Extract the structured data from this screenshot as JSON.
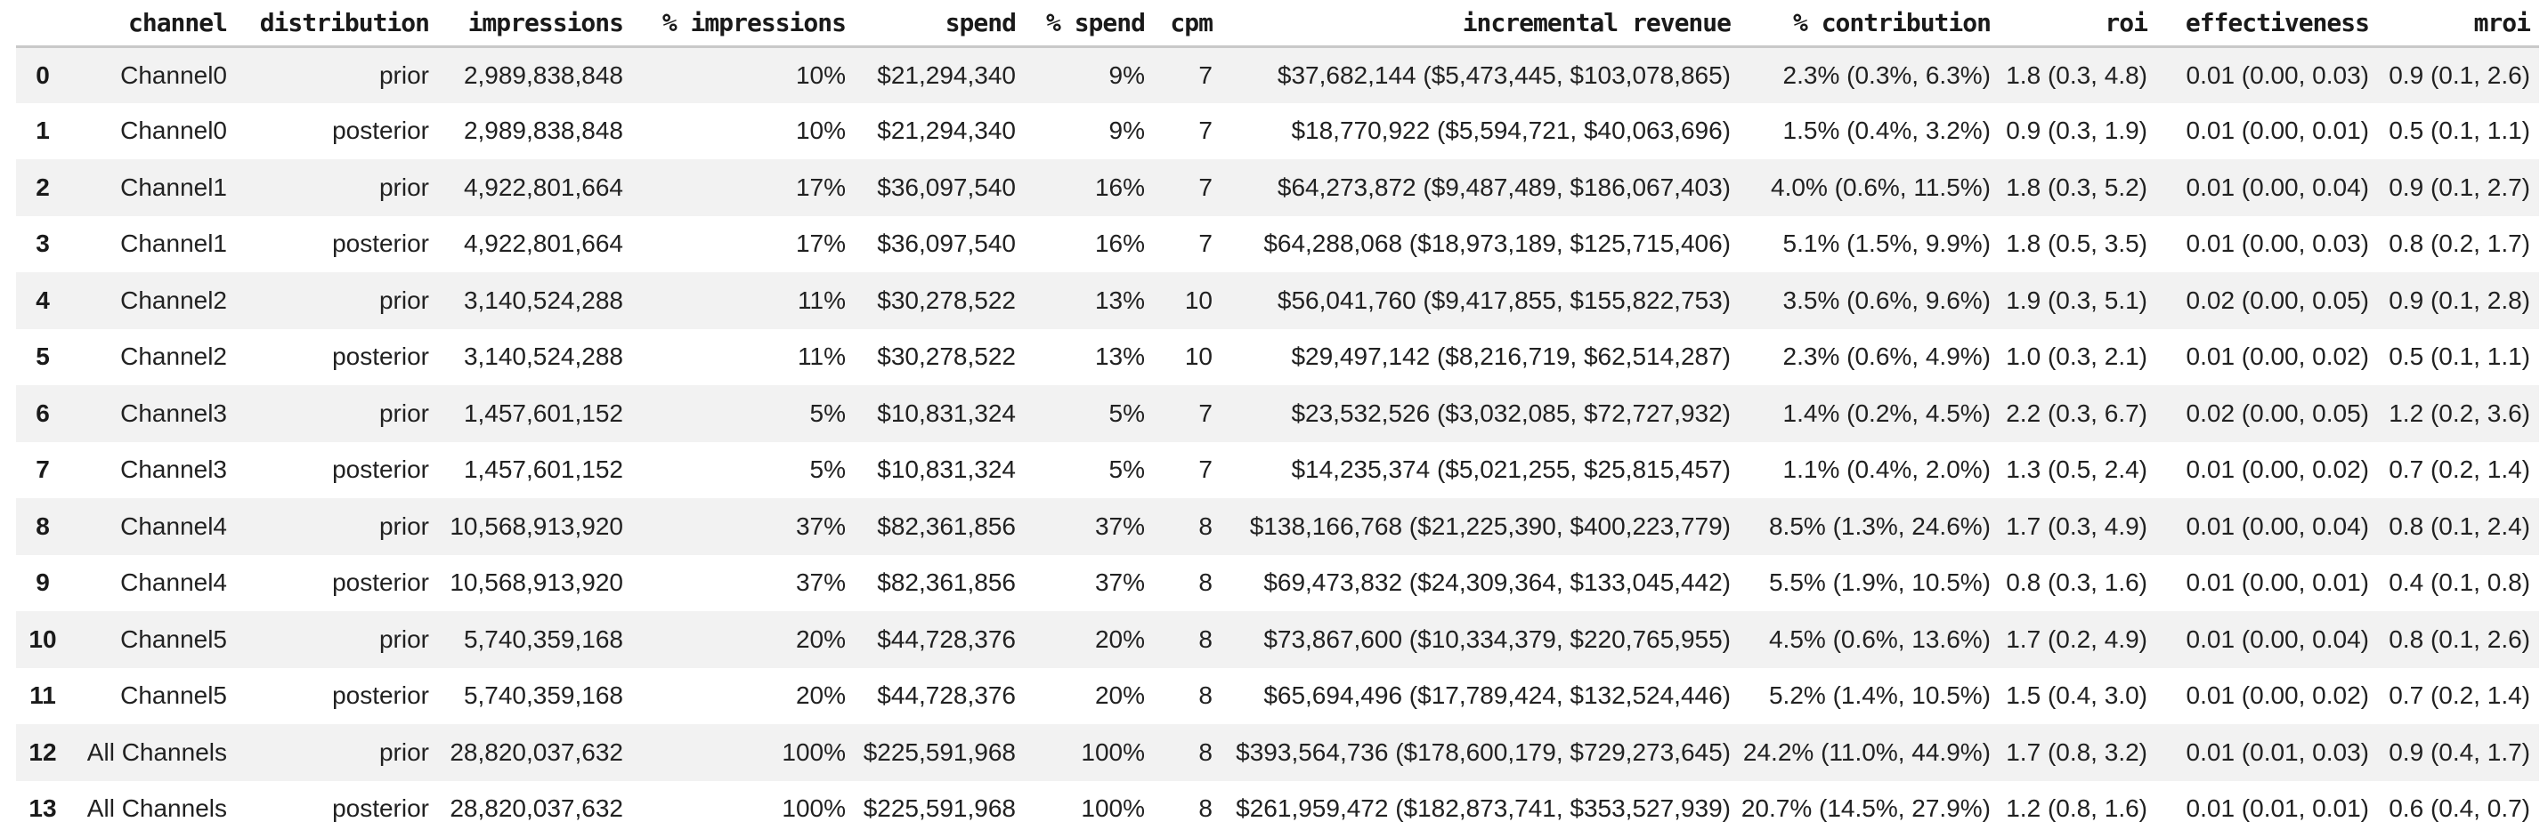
{
  "chart_data": {
    "type": "table",
    "columns": [
      "",
      "channel",
      "distribution",
      "impressions",
      "% impressions",
      "spend",
      "% spend",
      "cpm",
      "incremental revenue",
      "% contribution",
      "roi",
      "effectiveness",
      "mroi"
    ],
    "column_keys": [
      "row-index",
      "channel",
      "distribution",
      "impressions",
      "pct-impressions",
      "spend",
      "pct-spend",
      "cpm",
      "incremental-revenue",
      "pct-contribution",
      "roi",
      "effectiveness",
      "mroi"
    ],
    "rows": [
      [
        "0",
        "Channel0",
        "prior",
        "2,989,838,848",
        "10%",
        "$21,294,340",
        "9%",
        "7",
        "$37,682,144 ($5,473,445, $103,078,865)",
        "2.3% (0.3%, 6.3%)",
        "1.8 (0.3, 4.8)",
        "0.01 (0.00, 0.03)",
        "0.9 (0.1, 2.6)"
      ],
      [
        "1",
        "Channel0",
        "posterior",
        "2,989,838,848",
        "10%",
        "$21,294,340",
        "9%",
        "7",
        "$18,770,922 ($5,594,721, $40,063,696)",
        "1.5% (0.4%, 3.2%)",
        "0.9 (0.3, 1.9)",
        "0.01 (0.00, 0.01)",
        "0.5 (0.1, 1.1)"
      ],
      [
        "2",
        "Channel1",
        "prior",
        "4,922,801,664",
        "17%",
        "$36,097,540",
        "16%",
        "7",
        "$64,273,872 ($9,487,489, $186,067,403)",
        "4.0% (0.6%, 11.5%)",
        "1.8 (0.3, 5.2)",
        "0.01 (0.00, 0.04)",
        "0.9 (0.1, 2.7)"
      ],
      [
        "3",
        "Channel1",
        "posterior",
        "4,922,801,664",
        "17%",
        "$36,097,540",
        "16%",
        "7",
        "$64,288,068 ($18,973,189, $125,715,406)",
        "5.1% (1.5%, 9.9%)",
        "1.8 (0.5, 3.5)",
        "0.01 (0.00, 0.03)",
        "0.8 (0.2, 1.7)"
      ],
      [
        "4",
        "Channel2",
        "prior",
        "3,140,524,288",
        "11%",
        "$30,278,522",
        "13%",
        "10",
        "$56,041,760 ($9,417,855, $155,822,753)",
        "3.5% (0.6%, 9.6%)",
        "1.9 (0.3, 5.1)",
        "0.02 (0.00, 0.05)",
        "0.9 (0.1, 2.8)"
      ],
      [
        "5",
        "Channel2",
        "posterior",
        "3,140,524,288",
        "11%",
        "$30,278,522",
        "13%",
        "10",
        "$29,497,142 ($8,216,719, $62,514,287)",
        "2.3% (0.6%, 4.9%)",
        "1.0 (0.3, 2.1)",
        "0.01 (0.00, 0.02)",
        "0.5 (0.1, 1.1)"
      ],
      [
        "6",
        "Channel3",
        "prior",
        "1,457,601,152",
        "5%",
        "$10,831,324",
        "5%",
        "7",
        "$23,532,526 ($3,032,085, $72,727,932)",
        "1.4% (0.2%, 4.5%)",
        "2.2 (0.3, 6.7)",
        "0.02 (0.00, 0.05)",
        "1.2 (0.2, 3.6)"
      ],
      [
        "7",
        "Channel3",
        "posterior",
        "1,457,601,152",
        "5%",
        "$10,831,324",
        "5%",
        "7",
        "$14,235,374 ($5,021,255, $25,815,457)",
        "1.1% (0.4%, 2.0%)",
        "1.3 (0.5, 2.4)",
        "0.01 (0.00, 0.02)",
        "0.7 (0.2, 1.4)"
      ],
      [
        "8",
        "Channel4",
        "prior",
        "10,568,913,920",
        "37%",
        "$82,361,856",
        "37%",
        "8",
        "$138,166,768 ($21,225,390, $400,223,779)",
        "8.5% (1.3%, 24.6%)",
        "1.7 (0.3, 4.9)",
        "0.01 (0.00, 0.04)",
        "0.8 (0.1, 2.4)"
      ],
      [
        "9",
        "Channel4",
        "posterior",
        "10,568,913,920",
        "37%",
        "$82,361,856",
        "37%",
        "8",
        "$69,473,832 ($24,309,364, $133,045,442)",
        "5.5% (1.9%, 10.5%)",
        "0.8 (0.3, 1.6)",
        "0.01 (0.00, 0.01)",
        "0.4 (0.1, 0.8)"
      ],
      [
        "10",
        "Channel5",
        "prior",
        "5,740,359,168",
        "20%",
        "$44,728,376",
        "20%",
        "8",
        "$73,867,600 ($10,334,379, $220,765,955)",
        "4.5% (0.6%, 13.6%)",
        "1.7 (0.2, 4.9)",
        "0.01 (0.00, 0.04)",
        "0.8 (0.1, 2.6)"
      ],
      [
        "11",
        "Channel5",
        "posterior",
        "5,740,359,168",
        "20%",
        "$44,728,376",
        "20%",
        "8",
        "$65,694,496 ($17,789,424, $132,524,446)",
        "5.2% (1.4%, 10.5%)",
        "1.5 (0.4, 3.0)",
        "0.01 (0.00, 0.02)",
        "0.7 (0.2, 1.4)"
      ],
      [
        "12",
        "All Channels",
        "prior",
        "28,820,037,632",
        "100%",
        "$225,591,968",
        "100%",
        "8",
        "$393,564,736 ($178,600,179, $729,273,645)",
        "24.2% (11.0%, 44.9%)",
        "1.7 (0.8, 3.2)",
        "0.01 (0.01, 0.03)",
        "0.9 (0.4, 1.7)"
      ],
      [
        "13",
        "All Channels",
        "posterior",
        "28,820,037,632",
        "100%",
        "$225,591,968",
        "100%",
        "8",
        "$261,959,472 ($182,873,741, $353,527,939)",
        "20.7% (14.5%, 27.9%)",
        "1.2 (0.8, 1.6)",
        "0.01 (0.01, 0.01)",
        "0.6 (0.4, 0.7)"
      ]
    ],
    "layout": {
      "stripe_color": "#f2f2f2",
      "header_rule_color": "#c9c9c9",
      "text_color": "#212121",
      "striped_rows": "even-indices"
    }
  }
}
